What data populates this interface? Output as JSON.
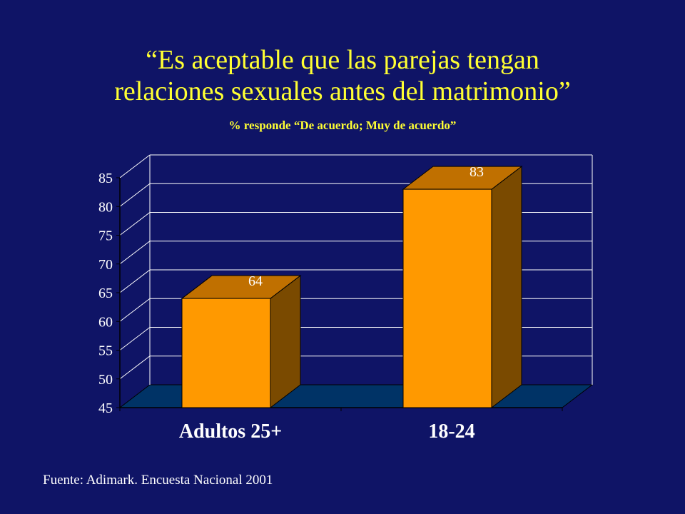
{
  "slide": {
    "title_line1": "“Es aceptable que las parejas tengan",
    "title_line2": "relaciones sexuales antes del matrimonio”",
    "subtitle": "% responde “De acuerdo; Muy de acuerdo”",
    "source": "Fuente: Adimark. Encuesta Nacional 2001"
  },
  "colors": {
    "background": "#0f1466",
    "title": "#ffff33",
    "bar_front": "#ff9900",
    "bar_top": "#c07000",
    "bar_side": "#7a4a00",
    "floor": "#003366",
    "grid": "#ffffff"
  },
  "chart_data": {
    "type": "bar",
    "categories": [
      "Adultos 25+",
      "18-24"
    ],
    "values": [
      64,
      83
    ],
    "data_labels": [
      "64",
      "83"
    ],
    "ylim": [
      45,
      85
    ],
    "yticks": [
      45,
      50,
      55,
      60,
      65,
      70,
      75,
      80,
      85
    ],
    "grid": true,
    "three_d": true
  }
}
